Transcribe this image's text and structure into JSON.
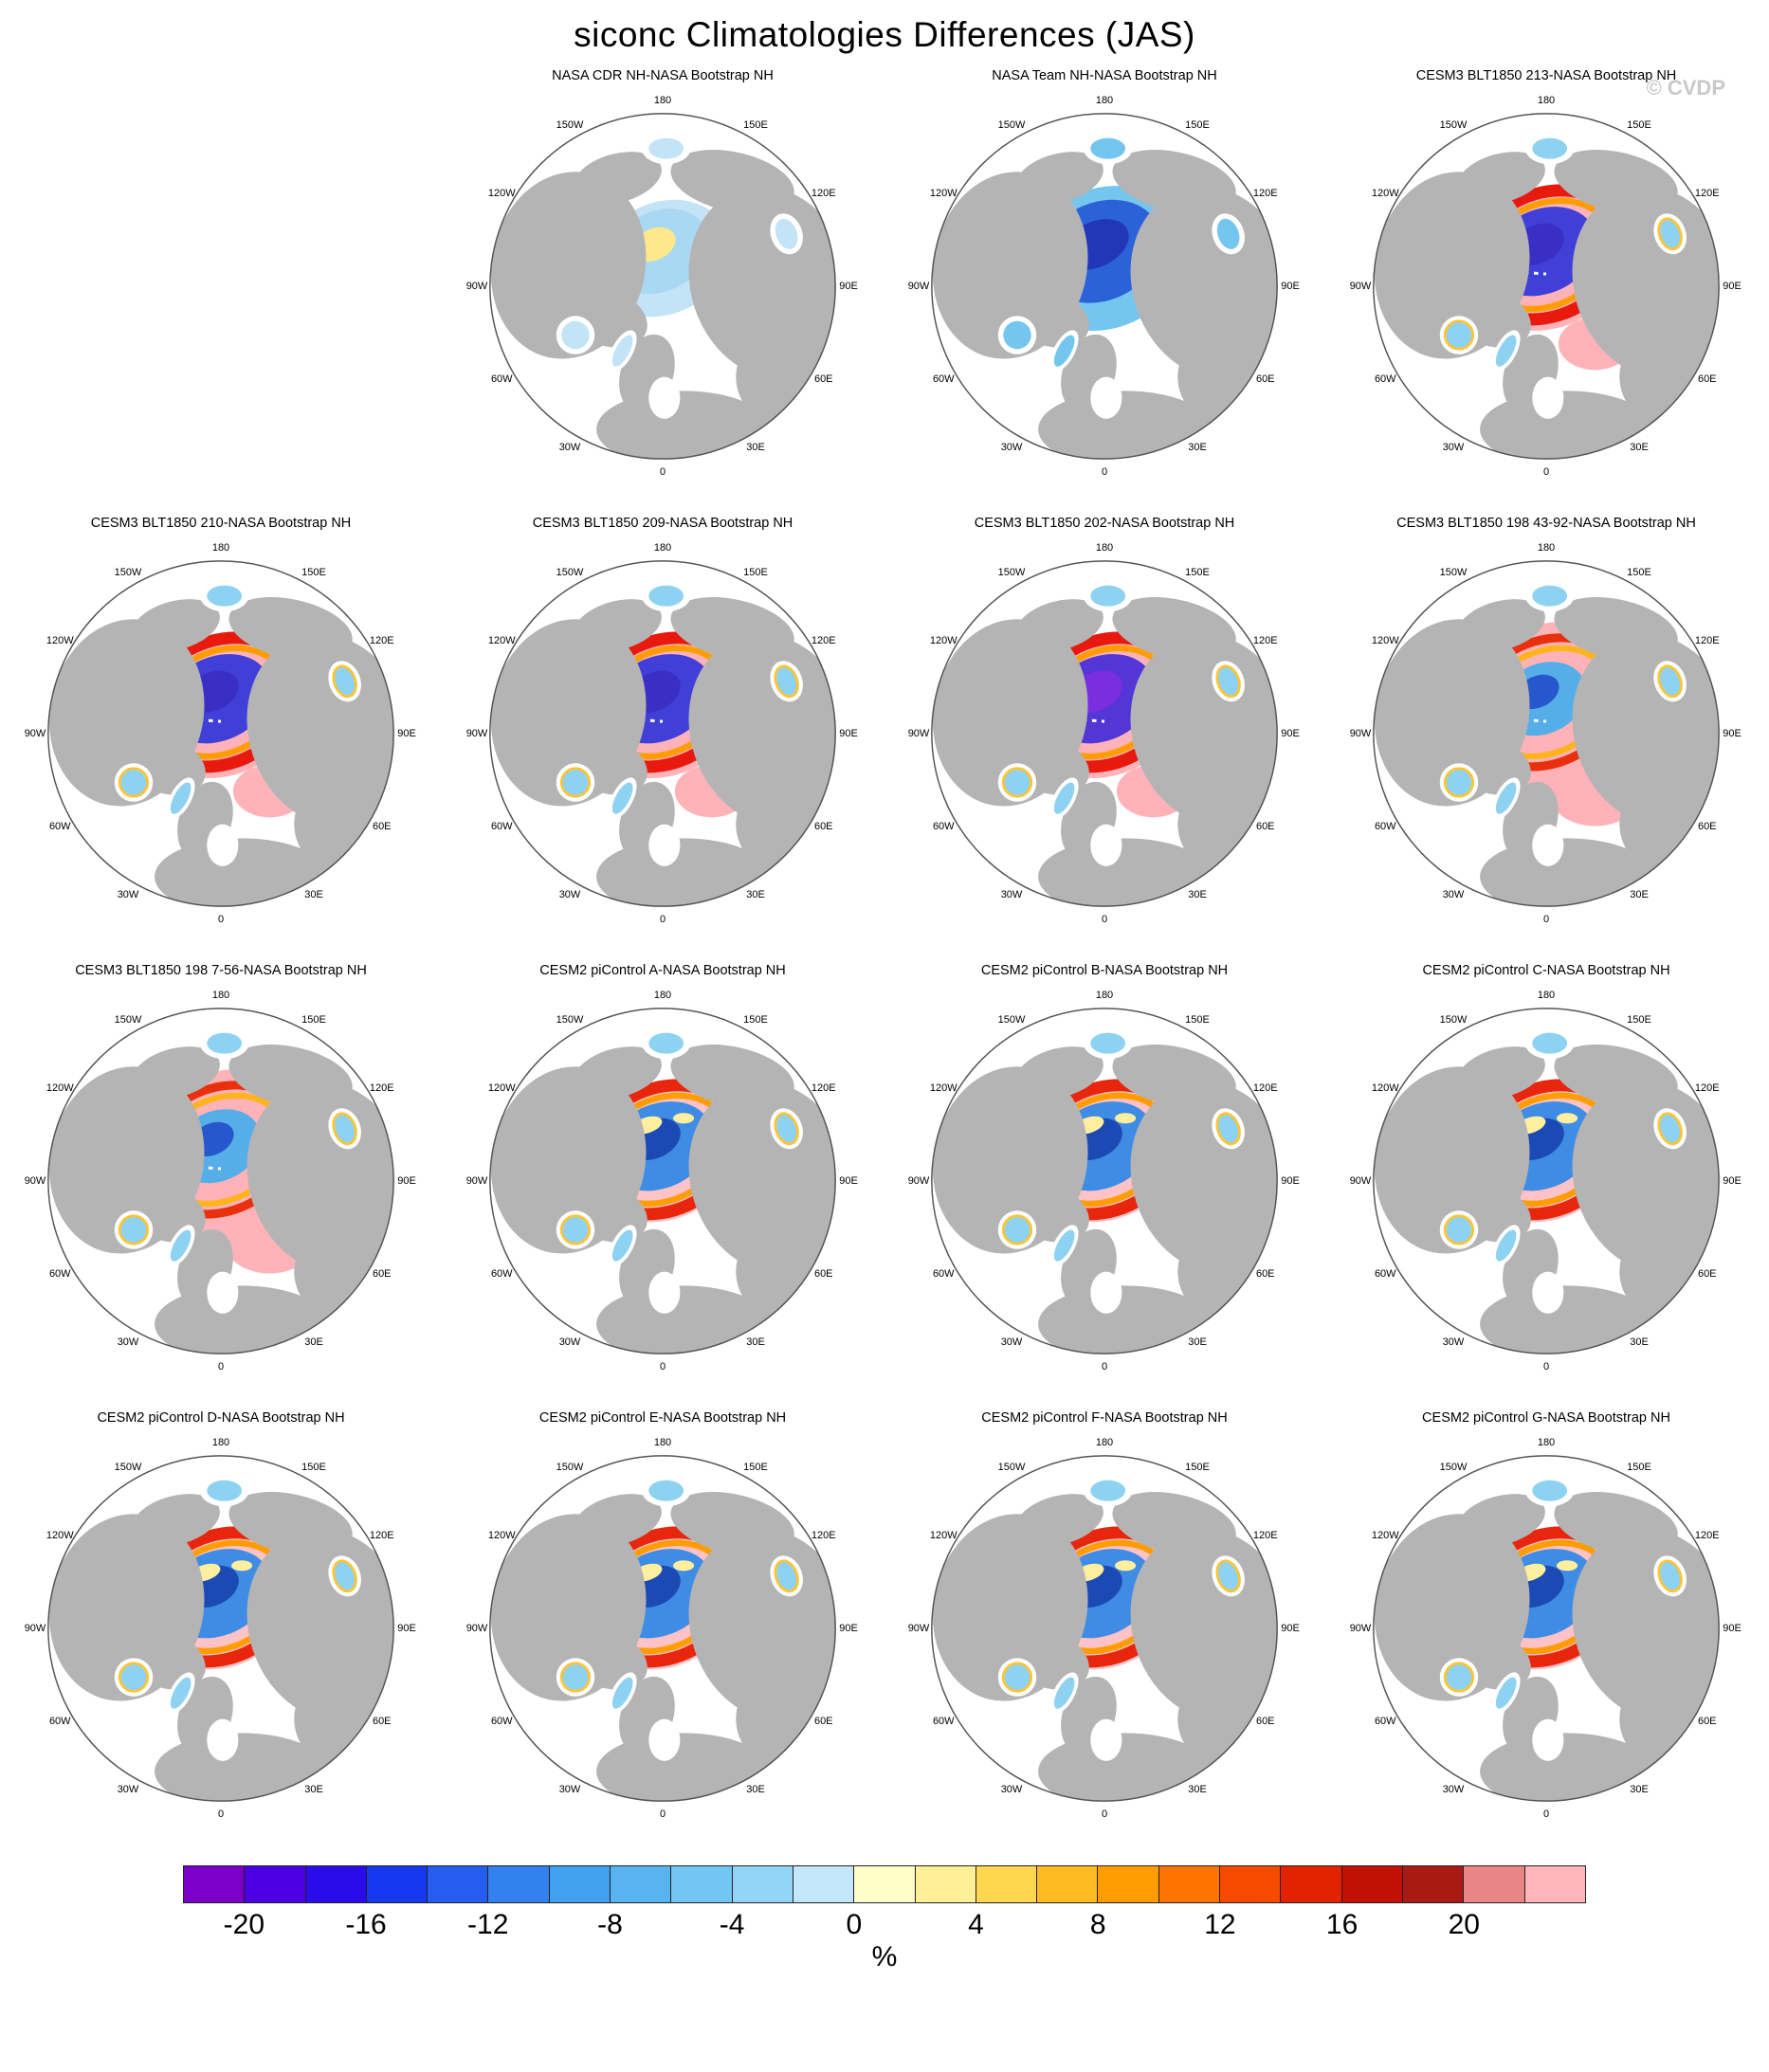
{
  "title": "siconc Climatologies Differences (JAS)",
  "watermark": "© CVDP",
  "chart_data": {
    "type": "heatmap",
    "figure": "Multi-panel Northern Hemisphere polar stereographic maps showing sea ice concentration (siconc) climatology differences vs NASA Bootstrap, JAS season",
    "units": "%",
    "grid": {
      "rows": 4,
      "cols": 4,
      "first_cell_empty": true
    },
    "lon_labels": [
      "180",
      "150E",
      "120E",
      "90E",
      "60E",
      "30E",
      "0",
      "30W",
      "60W",
      "90W",
      "120W",
      "150W"
    ],
    "panels": [
      {
        "title": "NASA CDR NH-NASA Bootstrap NH",
        "style": "cdr"
      },
      {
        "title": "NASA Team NH-NASA Bootstrap NH",
        "style": "team"
      },
      {
        "title": "CESM3 BLT1850 213-NASA Bootstrap NH",
        "style": "blt"
      },
      {
        "title": "CESM3 BLT1850 210-NASA Bootstrap NH",
        "style": "blt"
      },
      {
        "title": "CESM3 BLT1850 209-NASA Bootstrap NH",
        "style": "blt"
      },
      {
        "title": "CESM3 BLT1850 202-NASA Bootstrap NH",
        "style": "blt2"
      },
      {
        "title": "CESM3 BLT1850 198 43-92-NASA Bootstrap NH",
        "style": "bltpink"
      },
      {
        "title": "CESM3 BLT1850 198 7-56-NASA Bootstrap NH",
        "style": "bltpink"
      },
      {
        "title": "CESM2 piControl A-NASA Bootstrap NH",
        "style": "cesm2"
      },
      {
        "title": "CESM2 piControl B-NASA Bootstrap NH",
        "style": "cesm2"
      },
      {
        "title": "CESM2 piControl C-NASA Bootstrap NH",
        "style": "cesm2"
      },
      {
        "title": "CESM2 piControl D-NASA Bootstrap NH",
        "style": "cesm2"
      },
      {
        "title": "CESM2 piControl E-NASA Bootstrap NH",
        "style": "cesm2"
      },
      {
        "title": "CESM2 piControl F-NASA Bootstrap NH",
        "style": "cesm2"
      },
      {
        "title": "CESM2 piControl G-NASA Bootstrap NH",
        "style": "cesm2"
      }
    ],
    "colorbar": {
      "unit_label": "%",
      "tick_labels": [
        "-20",
        "-16",
        "-12",
        "-8",
        "-4",
        "0",
        "4",
        "8",
        "12",
        "16",
        "20"
      ],
      "n_cells": 23,
      "tick_cell_boundaries": [
        1,
        3,
        5,
        7,
        9,
        11,
        13,
        15,
        17,
        19,
        21
      ],
      "cell_colors": [
        "#7d00c8",
        "#4a00e0",
        "#2a0ce8",
        "#1638ee",
        "#265cf0",
        "#3380f0",
        "#41a0f0",
        "#57b4f1",
        "#73c5f3",
        "#93d5f6",
        "#c2e6fa",
        "#ffffc9",
        "#ffef96",
        "#ffd74f",
        "#ffbb22",
        "#ff9c00",
        "#ff7300",
        "#f64a00",
        "#e32200",
        "#c21004",
        "#aa1a14",
        "#e98585",
        "#ffb6bb"
      ]
    },
    "map_colors": {
      "land": "#b4b4b4",
      "ocean": "#ffffff",
      "circle_outline": "#555555",
      "styles": {
        "cdr": {
          "outer": "#c3e4f7",
          "outerR": 40,
          "outerRy": 32,
          "mid": "#a9d8f2",
          "midR": 30,
          "midRy": 23,
          "core": "#ffe98c",
          "coreR": 13,
          "coreRy": 9,
          "marg": "#c3e4f7"
        },
        "team": {
          "outer": "#74c6ef",
          "mid": "#2b62d9",
          "midR": 36,
          "midRy": 28,
          "core": "#2136b8",
          "coreR": 20,
          "coreRy": 13,
          "marg": "#74c6ef"
        },
        "blt": {
          "outer": "#ffb3b9",
          "ext": "#ffb3b9",
          "ring": "#e8190e",
          "ring2": "#ff9d00",
          "mid": "#4040d8",
          "core": "#3a2fc4",
          "marg": "#8ed2f2",
          "margStroke": "#ffc433",
          "dash": true
        },
        "blt2": {
          "outer": "#ffb3b9",
          "ext": "#ffb3b9",
          "ring": "#e8190e",
          "ring2": "#ff9d00",
          "mid": "#5336d6",
          "core": "#7a2ee0",
          "marg": "#8ed2f2",
          "margStroke": "#ffc433",
          "dash": true
        },
        "bltpink": {
          "outer": "#ffb3b9",
          "outerR": 56,
          "outerRy": 46,
          "ext": "#ffb3b9",
          "extBig": true,
          "ring": "#e8300e",
          "ring2": "#ffb41e",
          "ringW": 5,
          "mid": "#56aee8",
          "midR": 26,
          "midRy": 20,
          "core": "#2757cc",
          "coreR": 13,
          "coreRy": 9,
          "marg": "#8ed2f2",
          "margStroke": "#ffc433",
          "dash": true
        },
        "cesm2": {
          "outer": "#ffc2c7",
          "outerR": 46,
          "outerRy": 38,
          "ring": "#e8260e",
          "ring2": "#ff9d00",
          "mid": "#3f8ce4",
          "core": "#1c4ab4",
          "spot": "#ffef9e",
          "marg": "#8ed2f2",
          "margStroke": "#ffc433"
        }
      }
    }
  }
}
